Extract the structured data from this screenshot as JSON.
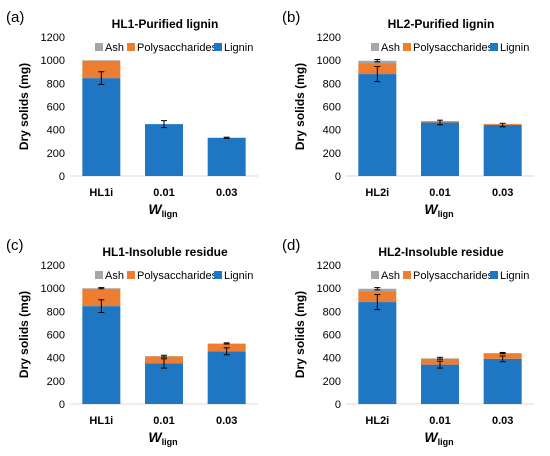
{
  "legend_labels": [
    "Ash",
    "Polysaccharides",
    "Lignin"
  ],
  "colors": {
    "ash": "#a6a6a6",
    "polysaccharides": "#ed7d31",
    "lignin": "#1f77c4",
    "axis": "#d9d9d9",
    "text": "#000000"
  },
  "chart_data": [
    {
      "type": "bar",
      "stacked": true,
      "panel_label": "(a)",
      "title": "HL1-Purified lignin",
      "categories": [
        "HL1i",
        "0.01",
        "0.03"
      ],
      "ylabel": "Dry solids (mg)",
      "xlabel_main": "W",
      "xlabel_sub": "lign",
      "ylim": [
        0,
        1200
      ],
      "yticks": [
        0,
        200,
        400,
        600,
        800,
        1000,
        1200
      ],
      "series": [
        {
          "name": "Lignin",
          "values": [
            845,
            448,
            330
          ],
          "error": [
            55,
            30,
            5
          ]
        },
        {
          "name": "Polysaccharides",
          "values": [
            150,
            0,
            0
          ]
        },
        {
          "name": "Ash",
          "values": [
            5,
            0,
            0
          ]
        }
      ],
      "total_error": [
        0,
        0,
        0
      ]
    },
    {
      "type": "bar",
      "stacked": true,
      "panel_label": "(b)",
      "title": "HL2-Purified lignin",
      "categories": [
        "HL2i",
        "0.01",
        "0.03"
      ],
      "ylabel": "Dry solids (mg)",
      "xlabel_main": "W",
      "xlabel_sub": "lign",
      "ylim": [
        0,
        1200
      ],
      "yticks": [
        0,
        200,
        400,
        600,
        800,
        1000,
        1200
      ],
      "series": [
        {
          "name": "Lignin",
          "values": [
            880,
            462,
            440
          ],
          "error": [
            65,
            20,
            15
          ]
        },
        {
          "name": "Polysaccharides",
          "values": [
            95,
            10,
            8
          ]
        },
        {
          "name": "Ash",
          "values": [
            20,
            3,
            2
          ]
        }
      ],
      "total_error": [
        10,
        0,
        0
      ]
    },
    {
      "type": "bar",
      "stacked": true,
      "panel_label": "(c)",
      "title": "HL1-Insoluble residue",
      "categories": [
        "HL1i",
        "0.01",
        "0.03"
      ],
      "ylabel": "Dry solids (mg)",
      "xlabel_main": "W",
      "xlabel_sub": "lign",
      "ylim": [
        0,
        1200
      ],
      "yticks": [
        0,
        200,
        400,
        600,
        800,
        1000,
        1200
      ],
      "series": [
        {
          "name": "Lignin",
          "values": [
            845,
            350,
            455
          ],
          "error": [
            55,
            40,
            30
          ]
        },
        {
          "name": "Polysaccharides",
          "values": [
            150,
            60,
            65
          ]
        },
        {
          "name": "Ash",
          "values": [
            5,
            3,
            3
          ]
        }
      ],
      "total_error": [
        5,
        8,
        5
      ]
    },
    {
      "type": "bar",
      "stacked": true,
      "panel_label": "(d)",
      "title": "HL2-Insoluble residue",
      "categories": [
        "HL2i",
        "0.01",
        "0.03"
      ],
      "ylabel": "Dry solids (mg)",
      "xlabel_main": "W",
      "xlabel_sub": "lign",
      "ylim": [
        0,
        1200
      ],
      "yticks": [
        0,
        200,
        400,
        600,
        800,
        1000,
        1200
      ],
      "series": [
        {
          "name": "Lignin",
          "values": [
            880,
            340,
            390
          ],
          "error": [
            65,
            30,
            25
          ]
        },
        {
          "name": "Polysaccharides",
          "values": [
            95,
            50,
            45
          ]
        },
        {
          "name": "Ash",
          "values": [
            20,
            5,
            5
          ]
        }
      ],
      "total_error": [
        10,
        8,
        5
      ]
    }
  ]
}
